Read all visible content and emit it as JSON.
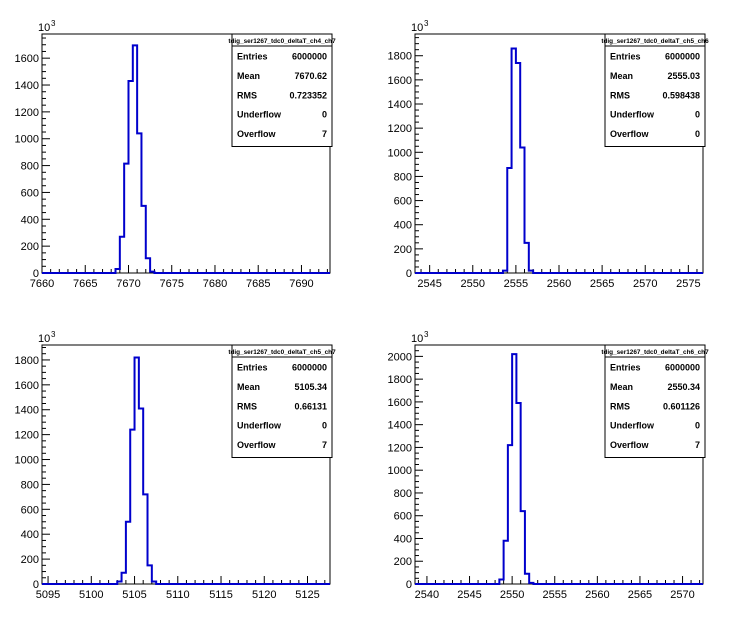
{
  "chart_data": [
    {
      "type": "histogram",
      "title": "",
      "xlabel": "",
      "ylabel": "",
      "y_multiplier_label": "10",
      "y_multiplier_exp": "3",
      "xlim": [
        7660,
        7693.3
      ],
      "ylim": [
        0,
        1780
      ],
      "x_ticks": [
        7660,
        7665,
        7670,
        7675,
        7680,
        7685,
        7690
      ],
      "y_ticks": [
        0,
        200,
        400,
        600,
        800,
        1000,
        1200,
        1400,
        1600
      ],
      "bin_width": 0.5,
      "bins_x": [
        7668.5,
        7669,
        7669.5,
        7670,
        7670.5,
        7671,
        7671.5,
        7672,
        7672.5
      ],
      "bins_y": [
        30,
        270,
        815,
        1430,
        1695,
        1040,
        500,
        110,
        10
      ],
      "color": "#0000cc",
      "stats": {
        "name": "tdig_ser1267_tdc0_deltaT_ch4_ch7",
        "rows": [
          {
            "label": "Entries",
            "value": "6000000"
          },
          {
            "label": "Mean",
            "value": "7670.62"
          },
          {
            "label": "RMS",
            "value": "0.723352"
          },
          {
            "label": "Underflow",
            "value": "0"
          },
          {
            "label": "Overflow",
            "value": "7"
          }
        ]
      }
    },
    {
      "type": "histogram",
      "title": "",
      "xlabel": "",
      "ylabel": "",
      "y_multiplier_label": "10",
      "y_multiplier_exp": "3",
      "xlim": [
        2543.3,
        2576.7
      ],
      "ylim": [
        0,
        1980
      ],
      "x_ticks": [
        2545,
        2550,
        2555,
        2560,
        2565,
        2570,
        2575
      ],
      "y_ticks": [
        0,
        200,
        400,
        600,
        800,
        1000,
        1200,
        1400,
        1600,
        1800
      ],
      "bin_width": 0.5,
      "bins_x": [
        2553.5,
        2554,
        2554.5,
        2555,
        2555.5,
        2556,
        2556.5
      ],
      "bins_y": [
        20,
        870,
        1860,
        1740,
        1040,
        250,
        20
      ],
      "color": "#0000cc",
      "stats": {
        "name": "tdig_ser1267_tdc0_deltaT_ch5_ch6",
        "rows": [
          {
            "label": "Entries",
            "value": "6000000"
          },
          {
            "label": "Mean",
            "value": "2555.03"
          },
          {
            "label": "RMS",
            "value": "0.598438"
          },
          {
            "label": "Underflow",
            "value": "0"
          },
          {
            "label": "Overflow",
            "value": "0"
          }
        ]
      }
    },
    {
      "type": "histogram",
      "title": "",
      "xlabel": "",
      "ylabel": "",
      "y_multiplier_label": "10",
      "y_multiplier_exp": "3",
      "xlim": [
        5094.3,
        5127.6
      ],
      "ylim": [
        0,
        1920
      ],
      "x_ticks": [
        5095,
        5100,
        5105,
        5110,
        5115,
        5120,
        5125
      ],
      "y_ticks": [
        0,
        200,
        400,
        600,
        800,
        1000,
        1200,
        1400,
        1600,
        1800
      ],
      "bin_width": 0.5,
      "bins_x": [
        5103,
        5103.5,
        5104,
        5104.5,
        5105,
        5105.5,
        5106,
        5106.5,
        5107
      ],
      "bins_y": [
        20,
        90,
        500,
        1240,
        1820,
        1410,
        720,
        150,
        20
      ],
      "color": "#0000cc",
      "stats": {
        "name": "tdig_ser1267_tdc0_deltaT_ch5_ch7",
        "rows": [
          {
            "label": "Entries",
            "value": "6000000"
          },
          {
            "label": "Mean",
            "value": "5105.34"
          },
          {
            "label": "RMS",
            "value": "0.66131"
          },
          {
            "label": "Underflow",
            "value": "0"
          },
          {
            "label": "Overflow",
            "value": "7"
          }
        ]
      }
    },
    {
      "type": "histogram",
      "title": "",
      "xlabel": "",
      "ylabel": "",
      "y_multiplier_label": "10",
      "y_multiplier_exp": "3",
      "xlim": [
        2538.6,
        2572.4
      ],
      "ylim": [
        0,
        2100
      ],
      "x_ticks": [
        2540,
        2545,
        2550,
        2555,
        2560,
        2565,
        2570
      ],
      "y_ticks": [
        0,
        200,
        400,
        600,
        800,
        1000,
        1200,
        1400,
        1600,
        1800,
        2000
      ],
      "bin_width": 0.5,
      "bins_x": [
        2548.5,
        2549,
        2549.5,
        2550,
        2550.5,
        2551,
        2551.5,
        2552
      ],
      "bins_y": [
        40,
        380,
        1220,
        2020,
        1590,
        640,
        90,
        10
      ],
      "color": "#0000cc",
      "stats": {
        "name": "tdig_ser1267_tdc0_deltaT_ch6_ch7",
        "rows": [
          {
            "label": "Entries",
            "value": "6000000"
          },
          {
            "label": "Mean",
            "value": "2550.34"
          },
          {
            "label": "RMS",
            "value": "0.601126"
          },
          {
            "label": "Underflow",
            "value": "0"
          },
          {
            "label": "Overflow",
            "value": "7"
          }
        ]
      }
    }
  ]
}
